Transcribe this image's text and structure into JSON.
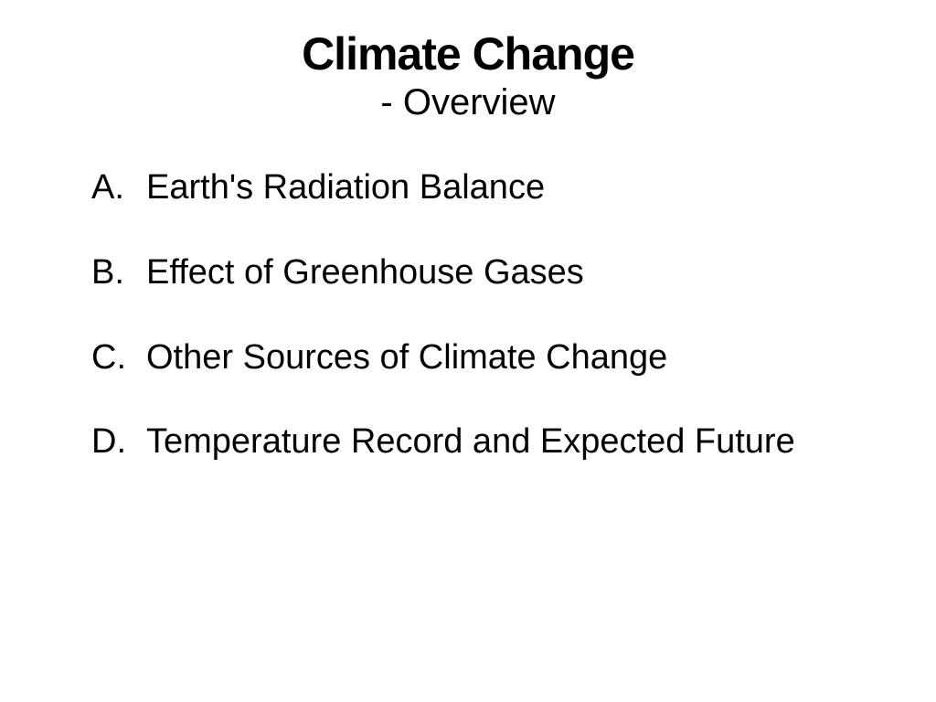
{
  "slide": {
    "title": "Climate Change",
    "subtitle": "- Overview",
    "items": [
      {
        "letter": "A.",
        "text": "Earth's Radiation Balance"
      },
      {
        "letter": "B.",
        "text": "Effect of Greenhouse Gases"
      },
      {
        "letter": "C.",
        "text": "Other Sources of Climate Change"
      },
      {
        "letter": "D.",
        "text": "Temperature Record and Expected Future"
      }
    ],
    "colors": {
      "background": "#ffffff",
      "text": "#000000"
    },
    "typography": {
      "title_fontsize": 50,
      "title_weight": "bold",
      "subtitle_fontsize": 40,
      "subtitle_weight": "normal",
      "body_fontsize": 38,
      "font_family": "Tahoma, Verdana, Arial, sans-serif"
    }
  }
}
